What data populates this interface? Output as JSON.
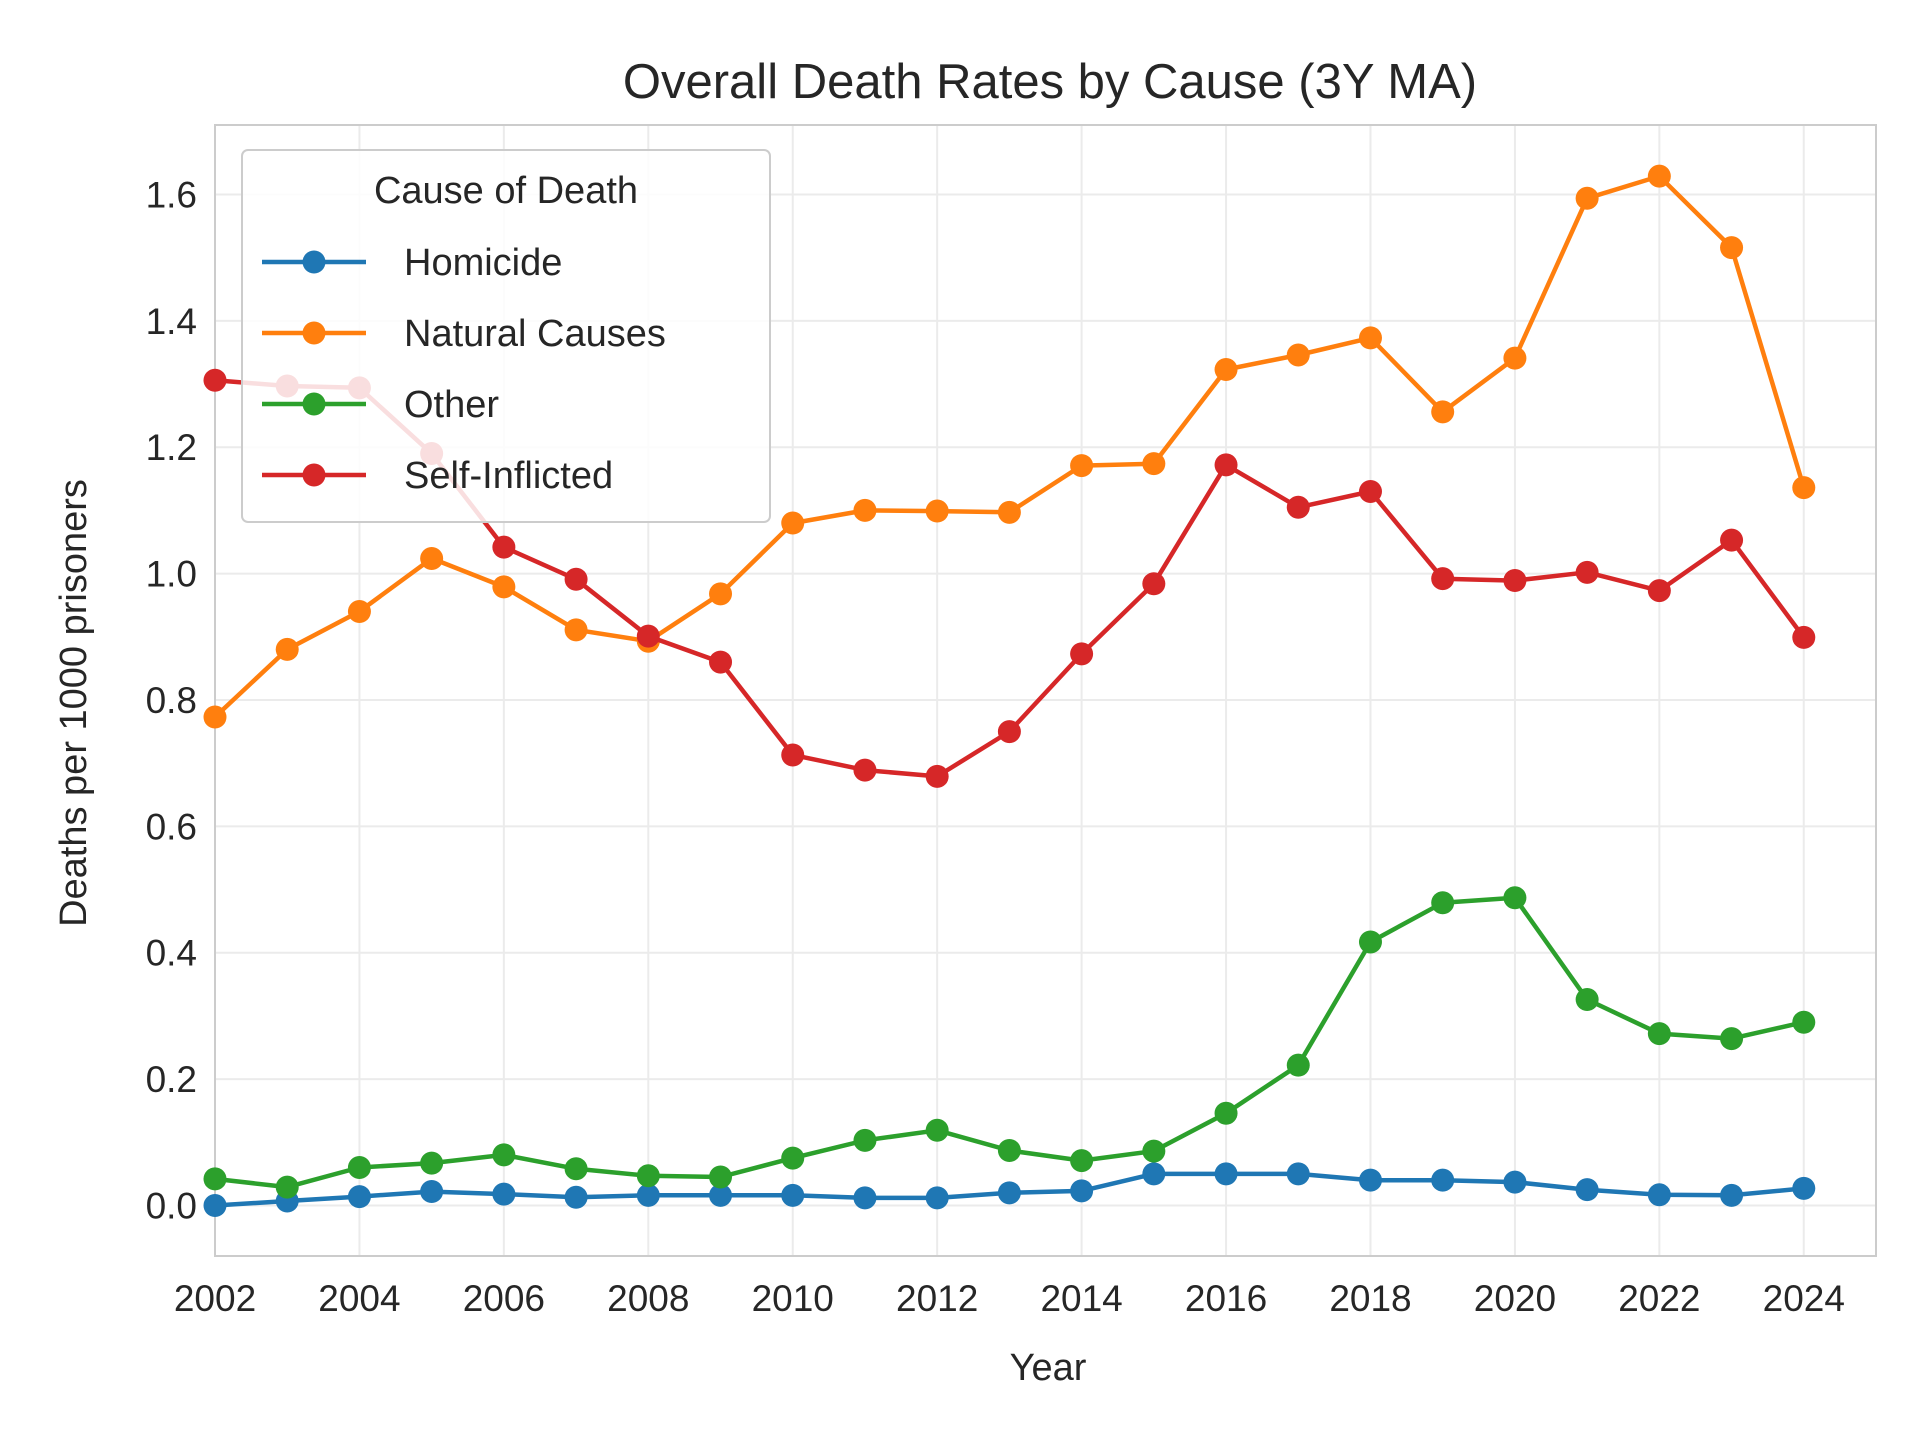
{
  "chart_data": {
    "type": "line",
    "title": "Overall Death Rates by Cause (3Y MA)",
    "xlabel": "Year",
    "ylabel": "Deaths per 1000 prisoners",
    "xlim": [
      2002,
      2025
    ],
    "ylim": [
      -0.08,
      1.71
    ],
    "xticks": [
      2002,
      2004,
      2006,
      2008,
      2010,
      2012,
      2014,
      2016,
      2018,
      2020,
      2022,
      2024
    ],
    "yticks": [
      0.0,
      0.2,
      0.4,
      0.6,
      0.8,
      1.0,
      1.2,
      1.4,
      1.6
    ],
    "ytick_labels": [
      "0.0",
      "0.2",
      "0.4",
      "0.6",
      "0.8",
      "1.0",
      "1.2",
      "1.4",
      "1.6"
    ],
    "grid": true,
    "legend": {
      "title": "Cause of Death",
      "position": "upper-left"
    },
    "x": [
      2002,
      2003,
      2004,
      2005,
      2006,
      2007,
      2008,
      2009,
      2010,
      2011,
      2012,
      2013,
      2014,
      2015,
      2016,
      2017,
      2018,
      2019,
      2020,
      2021,
      2022,
      2023,
      2024
    ],
    "series": [
      {
        "name": "Homicide",
        "color": "#1f77b4",
        "values": [
          0.0,
          0.007,
          0.014,
          0.022,
          0.018,
          0.013,
          0.016,
          0.016,
          0.016,
          0.012,
          0.012,
          0.02,
          0.023,
          0.05,
          0.05,
          0.05,
          0.04,
          0.04,
          0.037,
          0.025,
          0.017,
          0.016,
          0.027
        ]
      },
      {
        "name": "Natural Causes",
        "color": "#ff7f0e",
        "values": [
          0.773,
          0.88,
          0.94,
          1.024,
          0.979,
          0.911,
          0.893,
          0.968,
          1.08,
          1.1,
          1.099,
          1.097,
          1.171,
          1.174,
          1.323,
          1.346,
          1.373,
          1.256,
          1.341,
          1.594,
          1.629,
          1.516,
          1.136
        ]
      },
      {
        "name": "Other",
        "color": "#2ca02c",
        "values": [
          0.042,
          0.029,
          0.06,
          0.067,
          0.08,
          0.058,
          0.047,
          0.045,
          0.075,
          0.103,
          0.119,
          0.087,
          0.071,
          0.086,
          0.146,
          0.222,
          0.417,
          0.479,
          0.487,
          0.326,
          0.272,
          0.264,
          0.29
        ]
      },
      {
        "name": "Self-Inflicted",
        "color": "#d62728",
        "values": [
          1.306,
          1.297,
          1.294,
          1.19,
          1.042,
          0.991,
          0.901,
          0.86,
          0.713,
          0.689,
          0.679,
          0.75,
          0.873,
          0.984,
          1.172,
          1.105,
          1.13,
          0.992,
          0.989,
          1.002,
          0.973,
          1.053,
          0.899
        ]
      }
    ]
  }
}
